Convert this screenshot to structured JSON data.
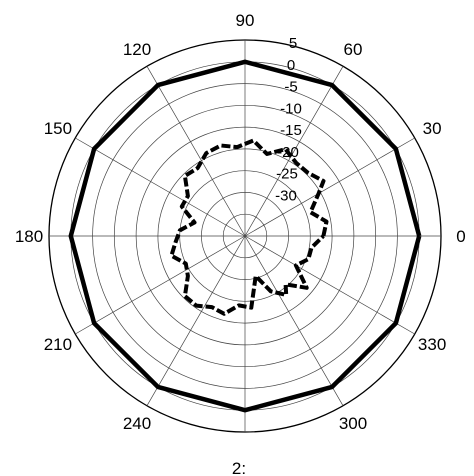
{
  "chart_data": {
    "type": "polar-line",
    "angle_unit": "degrees",
    "angle_ticks": [
      "0",
      "30",
      "60",
      "90",
      "120",
      "150",
      "180",
      "210",
      "240",
      "300",
      "330"
    ],
    "bottom_label_partial": "2:",
    "radial_tick_labels": [
      "5",
      "0",
      "-5",
      "-10",
      "-15",
      "-20",
      "-25",
      "-30"
    ],
    "radial_range": [
      -40,
      5
    ],
    "grid": true,
    "series": [
      {
        "style": "solid",
        "angles": [
          0,
          30,
          60,
          90,
          120,
          150,
          180,
          210,
          240,
          270,
          300,
          330,
          360
        ],
        "values": [
          0,
          0,
          0,
          0,
          0,
          0,
          0,
          0,
          0,
          0,
          0,
          0,
          0
        ]
      },
      {
        "style": "dashed",
        "angles": [
          0,
          10,
          20,
          30,
          35,
          45,
          55,
          65,
          75,
          85,
          95,
          105,
          115,
          125,
          135,
          145,
          155,
          165,
          175,
          185,
          195,
          205,
          215,
          225,
          235,
          245,
          255,
          265,
          275,
          285,
          295,
          305,
          310,
          320,
          330,
          340,
          350,
          360
        ],
        "values": [
          -22,
          -21,
          -24,
          -20.5,
          -18,
          -19.5,
          -19.5,
          -18,
          -20.5,
          -18,
          -19.5,
          -18.5,
          -19,
          -21,
          -20.5,
          -24,
          -24,
          -28,
          -25,
          -24,
          -22.5,
          -25,
          -24,
          -20.5,
          -20.5,
          -22,
          -21.5,
          -24,
          -23.5,
          -30.5,
          -26,
          -23.5,
          -25.5,
          -21.5,
          -26.5,
          -24.5,
          -24.5,
          -22
        ]
      }
    ]
  }
}
